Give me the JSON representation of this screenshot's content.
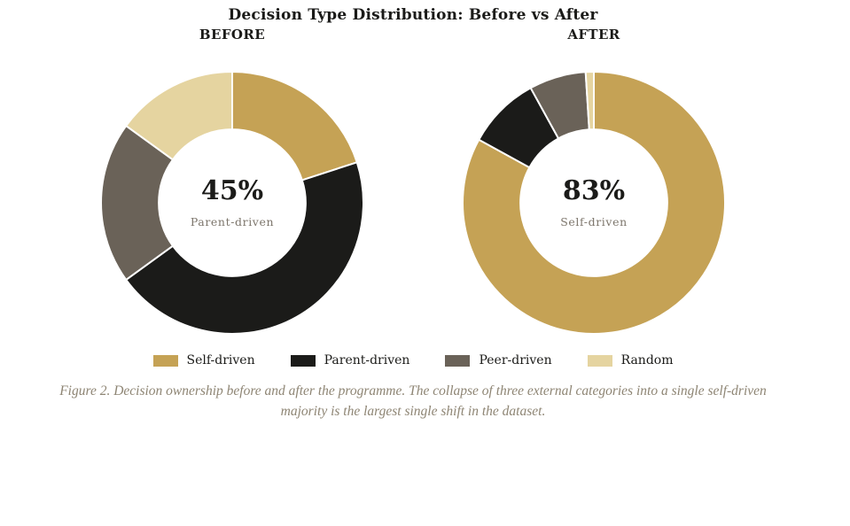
{
  "title": "Decision Type Distribution: Before vs After",
  "palette": {
    "self_driven": "#C5A255",
    "parent_driven": "#1B1B19",
    "peer_driven": "#6A6258",
    "random": "#E5D4A0",
    "caption_text": "#8E8574",
    "center_sub_text": "#7C756B",
    "background": "#FFFFFF"
  },
  "chart_data": [
    {
      "type": "pie",
      "variant": "donut",
      "title": "BEFORE",
      "categories": [
        "Self-driven",
        "Parent-driven",
        "Peer-driven",
        "Random"
      ],
      "values": [
        20,
        45,
        20,
        15
      ],
      "unit": "percent",
      "colors": [
        "#C5A255",
        "#1B1B19",
        "#6A6258",
        "#E5D4A0"
      ],
      "start_angle_deg": 0,
      "direction": "clockwise",
      "inner_radius_ratio": 0.56,
      "center_value": "45%",
      "center_label": "Parent-driven"
    },
    {
      "type": "pie",
      "variant": "donut",
      "title": "AFTER",
      "categories": [
        "Self-driven",
        "Parent-driven",
        "Peer-driven",
        "Random"
      ],
      "values": [
        83,
        9,
        7,
        1
      ],
      "unit": "percent",
      "colors": [
        "#C5A255",
        "#1B1B19",
        "#6A6258",
        "#E5D4A0"
      ],
      "start_angle_deg": 0,
      "direction": "clockwise",
      "inner_radius_ratio": 0.56,
      "center_value": "83%",
      "center_label": "Self-driven"
    }
  ],
  "legend": {
    "position": "bottom",
    "items": [
      {
        "label": "Self-driven",
        "color": "#C5A255"
      },
      {
        "label": "Parent-driven",
        "color": "#1B1B19"
      },
      {
        "label": "Peer-driven",
        "color": "#6A6258"
      },
      {
        "label": "Random",
        "color": "#E5D4A0"
      }
    ]
  },
  "caption": {
    "text": "Figure 2. Decision ownership before and after the programme. The collapse of three external categories into a single self-driven majority is the largest single shift in the dataset."
  }
}
